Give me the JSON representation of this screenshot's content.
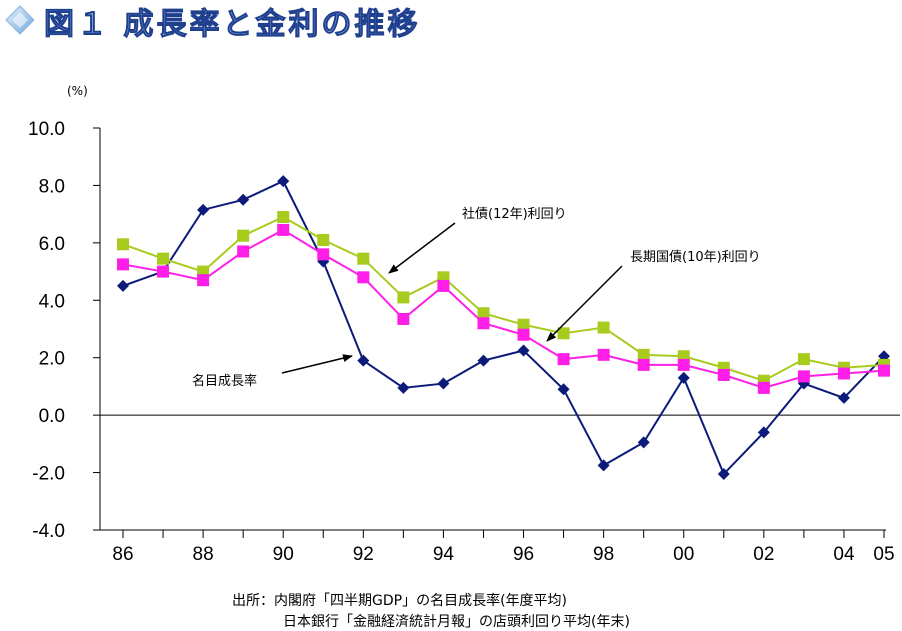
{
  "title": "図１ 成長率と金利の推移",
  "colors": {
    "title_fill": "#9ec2ea",
    "title_stroke": "#1f3f8f",
    "corporate": "#a8cc1e",
    "govt": "#ff1ee8",
    "gdp": "#0c1a7a"
  },
  "source": {
    "line1": "出所：内閣府「四半期GDP」の名目成長率(年度平均)",
    "line2": "日本銀行「金融経済統計月報」の店頭利回り平均(年末)"
  },
  "chart_data": {
    "type": "line",
    "ylabel": "(%)",
    "ylim": [
      -4.0,
      10.0
    ],
    "yticks": [
      "10.0",
      "8.0",
      "6.0",
      "4.0",
      "2.0",
      "0.0",
      "-2.0",
      "-4.0"
    ],
    "xlim": [
      1986,
      2005
    ],
    "xticks": [
      "86",
      "88",
      "90",
      "92",
      "94",
      "96",
      "98",
      "00",
      "02",
      "04",
      "05"
    ],
    "x": [
      1986,
      1987,
      1988,
      1989,
      1990,
      1991,
      1992,
      1993,
      1994,
      1995,
      1996,
      1997,
      1998,
      1999,
      2000,
      2001,
      2002,
      2003,
      2004,
      2005
    ],
    "series": [
      {
        "name": "社債(12年)利回り",
        "marker": "square",
        "values": [
          5.95,
          5.45,
          5.0,
          6.25,
          6.9,
          6.1,
          5.45,
          4.1,
          4.8,
          3.55,
          3.15,
          2.85,
          3.05,
          2.1,
          2.05,
          1.65,
          1.2,
          1.95,
          1.65,
          1.75
        ]
      },
      {
        "name": "長期国債(10年)利回り",
        "marker": "square",
        "values": [
          5.25,
          5.0,
          4.7,
          5.7,
          6.45,
          5.6,
          4.8,
          3.35,
          4.5,
          3.2,
          2.8,
          1.95,
          2.1,
          1.75,
          1.75,
          1.4,
          0.95,
          1.35,
          1.45,
          1.55
        ]
      },
      {
        "name": "名目成長率",
        "marker": "diamond",
        "values": [
          4.5,
          5.0,
          7.15,
          7.5,
          8.15,
          5.35,
          1.9,
          0.95,
          1.1,
          1.9,
          2.25,
          0.9,
          -1.75,
          -0.95,
          1.3,
          -2.05,
          -0.6,
          1.1,
          0.6,
          2.05
        ]
      }
    ],
    "annotations": [
      {
        "text": "社債(12年)利回り",
        "points_to": "社債(12年)利回り"
      },
      {
        "text": "長期国債(10年)利回り",
        "points_to": "長期国債(10年)利回り"
      },
      {
        "text": "名目成長率",
        "points_to": "名目成長率"
      }
    ],
    "grid": false,
    "legend": "none"
  }
}
